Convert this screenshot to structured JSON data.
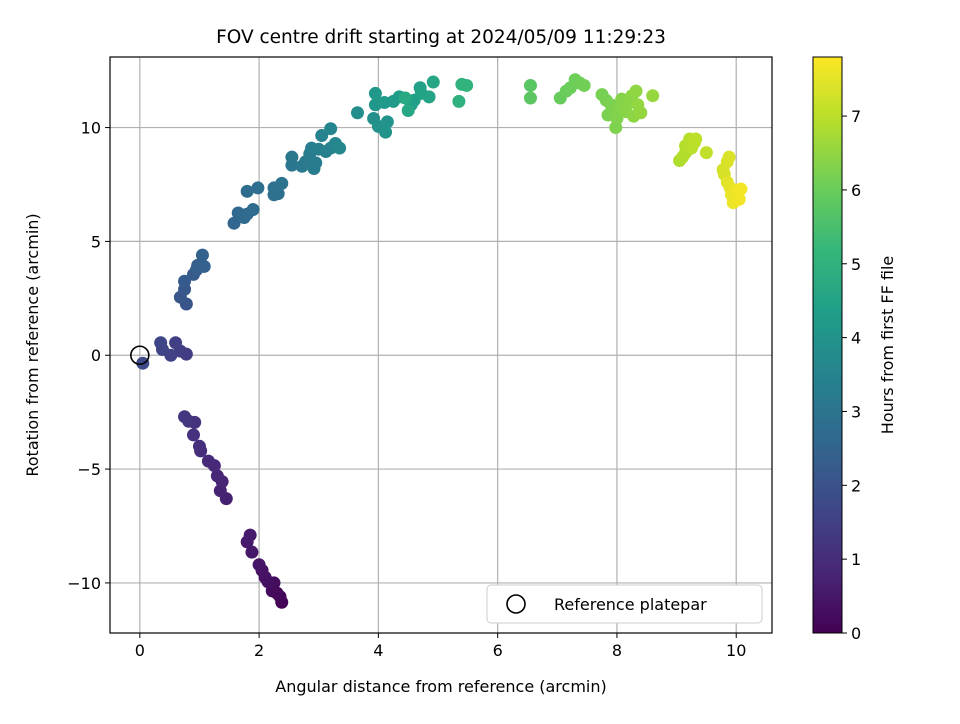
{
  "chart_data": {
    "type": "scatter",
    "title": "FOV centre drift starting at 2024/05/09 11:29:23",
    "xlabel": "Angular distance from reference (arcmin)",
    "ylabel": "Rotation from reference (arcmin)",
    "colorbar_label": "Hours from first FF file",
    "colormap": "viridis",
    "xlim": [
      -0.5,
      10.6
    ],
    "ylim": [
      -12.2,
      13.1
    ],
    "clim": [
      0,
      7.8
    ],
    "x_ticks": [
      0,
      2,
      4,
      6,
      8,
      10
    ],
    "y_ticks": [
      -10,
      -5,
      0,
      5,
      10
    ],
    "c_ticks": [
      0,
      1,
      2,
      3,
      4,
      5,
      6,
      7
    ],
    "grid": true,
    "legend": {
      "position": "lower-right",
      "entries": [
        "Reference platepar"
      ]
    },
    "reference_point": {
      "x": 0,
      "y": 0
    },
    "points": [
      {
        "x": 2.38,
        "y": -10.85,
        "c": 0.05
      },
      {
        "x": 2.35,
        "y": -10.6,
        "c": 0.1
      },
      {
        "x": 2.3,
        "y": -10.45,
        "c": 0.15
      },
      {
        "x": 2.22,
        "y": -10.35,
        "c": 0.2
      },
      {
        "x": 2.25,
        "y": -10.0,
        "c": 0.25
      },
      {
        "x": 2.15,
        "y": -9.95,
        "c": 0.3
      },
      {
        "x": 2.1,
        "y": -9.75,
        "c": 0.35
      },
      {
        "x": 2.05,
        "y": -9.45,
        "c": 0.4
      },
      {
        "x": 2.0,
        "y": -9.2,
        "c": 0.45
      },
      {
        "x": 1.88,
        "y": -8.65,
        "c": 0.5
      },
      {
        "x": 1.8,
        "y": -8.2,
        "c": 0.55
      },
      {
        "x": 1.85,
        "y": -7.9,
        "c": 0.6
      },
      {
        "x": 1.45,
        "y": -6.3,
        "c": 0.7
      },
      {
        "x": 1.35,
        "y": -5.95,
        "c": 0.75
      },
      {
        "x": 1.38,
        "y": -5.55,
        "c": 0.8
      },
      {
        "x": 1.3,
        "y": -5.3,
        "c": 0.85
      },
      {
        "x": 1.25,
        "y": -4.85,
        "c": 0.9
      },
      {
        "x": 1.15,
        "y": -4.65,
        "c": 0.95
      },
      {
        "x": 1.02,
        "y": -4.2,
        "c": 1.0
      },
      {
        "x": 1.0,
        "y": -4.0,
        "c": 1.05
      },
      {
        "x": 0.9,
        "y": -3.5,
        "c": 1.1
      },
      {
        "x": 0.92,
        "y": -2.95,
        "c": 1.15
      },
      {
        "x": 0.82,
        "y": -2.9,
        "c": 1.2
      },
      {
        "x": 0.75,
        "y": -2.7,
        "c": 1.25
      },
      {
        "x": 0.78,
        "y": 0.05,
        "c": 1.4
      },
      {
        "x": 0.68,
        "y": 0.18,
        "c": 1.45
      },
      {
        "x": 0.6,
        "y": 0.55,
        "c": 1.5
      },
      {
        "x": 0.52,
        "y": 0.0,
        "c": 1.55
      },
      {
        "x": 0.38,
        "y": 0.25,
        "c": 1.6
      },
      {
        "x": 0.35,
        "y": 0.55,
        "c": 1.65
      },
      {
        "x": 0.05,
        "y": -0.35,
        "c": 1.75
      },
      {
        "x": 0.78,
        "y": 2.25,
        "c": 2.05
      },
      {
        "x": 0.68,
        "y": 2.55,
        "c": 2.1
      },
      {
        "x": 0.75,
        "y": 2.9,
        "c": 2.15
      },
      {
        "x": 0.75,
        "y": 3.25,
        "c": 2.2
      },
      {
        "x": 0.9,
        "y": 3.55,
        "c": 2.25
      },
      {
        "x": 0.95,
        "y": 3.75,
        "c": 2.3
      },
      {
        "x": 0.97,
        "y": 3.95,
        "c": 2.35
      },
      {
        "x": 1.08,
        "y": 3.9,
        "c": 2.4
      },
      {
        "x": 1.05,
        "y": 4.4,
        "c": 2.45
      },
      {
        "x": 1.58,
        "y": 5.8,
        "c": 2.55
      },
      {
        "x": 1.65,
        "y": 6.25,
        "c": 2.6
      },
      {
        "x": 1.75,
        "y": 6.05,
        "c": 2.65
      },
      {
        "x": 1.8,
        "y": 6.2,
        "c": 2.68
      },
      {
        "x": 1.9,
        "y": 6.4,
        "c": 2.72
      },
      {
        "x": 1.8,
        "y": 7.2,
        "c": 2.75
      },
      {
        "x": 1.98,
        "y": 7.35,
        "c": 2.8
      },
      {
        "x": 2.25,
        "y": 7.05,
        "c": 2.85
      },
      {
        "x": 2.32,
        "y": 7.1,
        "c": 2.88
      },
      {
        "x": 2.25,
        "y": 7.35,
        "c": 2.9
      },
      {
        "x": 2.38,
        "y": 7.55,
        "c": 2.95
      },
      {
        "x": 2.55,
        "y": 8.35,
        "c": 3.05
      },
      {
        "x": 2.55,
        "y": 8.7,
        "c": 3.1
      },
      {
        "x": 2.72,
        "y": 8.3,
        "c": 3.15
      },
      {
        "x": 2.78,
        "y": 8.5,
        "c": 3.18
      },
      {
        "x": 2.92,
        "y": 8.2,
        "c": 3.22
      },
      {
        "x": 2.95,
        "y": 8.45,
        "c": 3.25
      },
      {
        "x": 2.85,
        "y": 8.85,
        "c": 3.28
      },
      {
        "x": 2.88,
        "y": 9.1,
        "c": 3.32
      },
      {
        "x": 3.0,
        "y": 9.05,
        "c": 3.35
      },
      {
        "x": 3.12,
        "y": 8.95,
        "c": 3.4
      },
      {
        "x": 3.2,
        "y": 9.1,
        "c": 3.45
      },
      {
        "x": 3.05,
        "y": 9.65,
        "c": 3.5
      },
      {
        "x": 3.2,
        "y": 9.95,
        "c": 3.55
      },
      {
        "x": 3.28,
        "y": 9.3,
        "c": 3.6
      },
      {
        "x": 3.35,
        "y": 9.1,
        "c": 3.65
      },
      {
        "x": 3.65,
        "y": 10.65,
        "c": 3.85
      },
      {
        "x": 3.92,
        "y": 10.4,
        "c": 3.9
      },
      {
        "x": 4.0,
        "y": 10.05,
        "c": 3.95
      },
      {
        "x": 4.12,
        "y": 9.8,
        "c": 4.0
      },
      {
        "x": 4.15,
        "y": 10.25,
        "c": 4.05
      },
      {
        "x": 3.95,
        "y": 11.0,
        "c": 4.1
      },
      {
        "x": 3.95,
        "y": 11.5,
        "c": 4.15
      },
      {
        "x": 4.1,
        "y": 11.1,
        "c": 4.2
      },
      {
        "x": 4.25,
        "y": 11.15,
        "c": 4.25
      },
      {
        "x": 4.35,
        "y": 11.35,
        "c": 4.3
      },
      {
        "x": 4.55,
        "y": 11.0,
        "c": 4.35
      },
      {
        "x": 4.6,
        "y": 11.2,
        "c": 4.4
      },
      {
        "x": 4.7,
        "y": 11.75,
        "c": 4.45
      },
      {
        "x": 4.72,
        "y": 11.5,
        "c": 4.5
      },
      {
        "x": 4.85,
        "y": 11.35,
        "c": 4.55
      },
      {
        "x": 4.92,
        "y": 12.0,
        "c": 4.6
      },
      {
        "x": 4.5,
        "y": 10.75,
        "c": 4.65
      },
      {
        "x": 4.45,
        "y": 11.3,
        "c": 4.7
      },
      {
        "x": 5.35,
        "y": 11.15,
        "c": 4.95
      },
      {
        "x": 5.4,
        "y": 11.9,
        "c": 5.0
      },
      {
        "x": 5.48,
        "y": 11.85,
        "c": 5.05
      },
      {
        "x": 6.55,
        "y": 11.85,
        "c": 5.75
      },
      {
        "x": 6.55,
        "y": 11.3,
        "c": 5.8
      },
      {
        "x": 7.05,
        "y": 11.3,
        "c": 5.95
      },
      {
        "x": 7.15,
        "y": 11.6,
        "c": 6.0
      },
      {
        "x": 7.22,
        "y": 11.75,
        "c": 6.02
      },
      {
        "x": 7.3,
        "y": 12.1,
        "c": 6.05
      },
      {
        "x": 7.38,
        "y": 11.95,
        "c": 6.08
      },
      {
        "x": 7.45,
        "y": 11.85,
        "c": 6.1
      },
      {
        "x": 7.75,
        "y": 11.45,
        "c": 6.15
      },
      {
        "x": 7.82,
        "y": 11.2,
        "c": 6.18
      },
      {
        "x": 7.9,
        "y": 11.0,
        "c": 6.2
      },
      {
        "x": 7.85,
        "y": 10.55,
        "c": 6.22
      },
      {
        "x": 7.95,
        "y": 10.75,
        "c": 6.25
      },
      {
        "x": 7.98,
        "y": 10.0,
        "c": 6.28
      },
      {
        "x": 8.0,
        "y": 10.4,
        "c": 6.3
      },
      {
        "x": 8.05,
        "y": 10.9,
        "c": 6.32
      },
      {
        "x": 8.08,
        "y": 11.25,
        "c": 6.35
      },
      {
        "x": 8.15,
        "y": 10.7,
        "c": 6.38
      },
      {
        "x": 8.2,
        "y": 11.1,
        "c": 6.4
      },
      {
        "x": 8.25,
        "y": 11.4,
        "c": 6.42
      },
      {
        "x": 8.28,
        "y": 10.5,
        "c": 6.45
      },
      {
        "x": 8.32,
        "y": 11.6,
        "c": 6.48
      },
      {
        "x": 8.35,
        "y": 11.0,
        "c": 6.5
      },
      {
        "x": 8.4,
        "y": 10.65,
        "c": 6.52
      },
      {
        "x": 8.6,
        "y": 11.4,
        "c": 6.55
      },
      {
        "x": 9.05,
        "y": 8.55,
        "c": 6.85
      },
      {
        "x": 9.1,
        "y": 8.7,
        "c": 6.88
      },
      {
        "x": 9.15,
        "y": 8.9,
        "c": 6.9
      },
      {
        "x": 9.15,
        "y": 9.2,
        "c": 6.92
      },
      {
        "x": 9.22,
        "y": 9.5,
        "c": 6.95
      },
      {
        "x": 9.25,
        "y": 9.1,
        "c": 6.98
      },
      {
        "x": 9.3,
        "y": 9.35,
        "c": 7.0
      },
      {
        "x": 9.32,
        "y": 9.5,
        "c": 7.02
      },
      {
        "x": 9.5,
        "y": 8.9,
        "c": 7.05
      },
      {
        "x": 9.78,
        "y": 8.15,
        "c": 7.3
      },
      {
        "x": 9.8,
        "y": 7.95,
        "c": 7.32
      },
      {
        "x": 9.85,
        "y": 8.5,
        "c": 7.35
      },
      {
        "x": 9.88,
        "y": 8.7,
        "c": 7.38
      },
      {
        "x": 9.85,
        "y": 7.6,
        "c": 7.45
      },
      {
        "x": 9.9,
        "y": 7.35,
        "c": 7.5
      },
      {
        "x": 9.92,
        "y": 7.05,
        "c": 7.55
      },
      {
        "x": 9.95,
        "y": 6.7,
        "c": 7.6
      },
      {
        "x": 10.0,
        "y": 7.25,
        "c": 7.62
      },
      {
        "x": 10.05,
        "y": 6.85,
        "c": 7.65
      },
      {
        "x": 10.08,
        "y": 7.3,
        "c": 7.68
      }
    ]
  }
}
